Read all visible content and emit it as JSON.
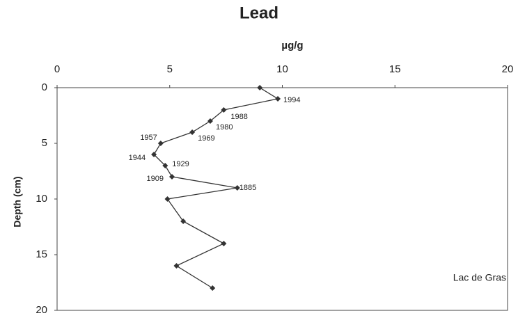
{
  "chart_data": {
    "type": "line",
    "title": "Lead",
    "x_label": "µg/g",
    "y_label": "Depth (cm)",
    "series": [
      {
        "color": "#333333",
        "x": [
          9.0,
          9.8,
          7.4,
          6.8,
          6.0,
          4.6,
          4.3,
          4.8,
          5.1,
          8.0,
          4.9,
          5.6,
          7.4,
          5.3,
          6.9
        ],
        "values": [
          0,
          1,
          2,
          3,
          4,
          5,
          6,
          7,
          8,
          9,
          10,
          12,
          14,
          16,
          18
        ],
        "point_labels": [
          null,
          "1994",
          "1988",
          "1980",
          "1969",
          "1957",
          "1944",
          "1929",
          "1909",
          "1885",
          null,
          null,
          null,
          null,
          null
        ]
      }
    ],
    "xlim": [
      0,
      20
    ],
    "xticks": [
      0,
      5,
      10,
      15,
      20
    ],
    "ylim": [
      0,
      20
    ],
    "yticks": [
      0,
      5,
      10,
      15,
      20
    ],
    "y_inverted": true,
    "x_axis_position": "top",
    "grid": false,
    "annotation": "Lac de Gras"
  }
}
